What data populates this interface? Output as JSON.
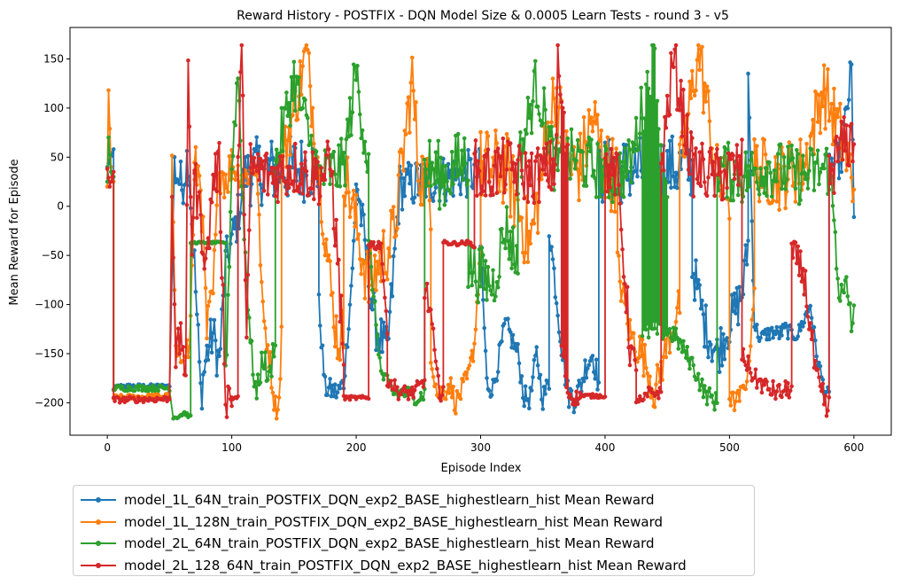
{
  "chart_data": {
    "type": "line",
    "title": "Reward History - POSTFIX - DQN Model Size & 0.0005 Learn Tests - round 3 - v5",
    "xlabel": "Episode Index",
    "ylabel": "Mean Reward for Episode",
    "xlim": [
      -30,
      630
    ],
    "ylim": [
      -233,
      182
    ],
    "xticks": [
      0,
      100,
      200,
      300,
      400,
      500,
      600
    ],
    "yticks": [
      -200,
      -150,
      -100,
      -50,
      0,
      50,
      100,
      150
    ],
    "xtick_labels": [
      "0",
      "100",
      "200",
      "300",
      "400",
      "500",
      "600"
    ],
    "ytick_labels": [
      "−200",
      "−150",
      "−100",
      "−50",
      "0",
      "50",
      "100",
      "150"
    ],
    "grid": false,
    "legend_position": "below",
    "markers": true,
    "series": [
      {
        "name": "model_1L_64N_train_POSTFIX_DQN_exp2_BASE_highestlearn_hist Mean Reward",
        "color": "#1f77b4",
        "segments": [
          {
            "x": [
              0,
              5
            ],
            "y": [
              40,
              58
            ]
          },
          {
            "x": [
              5,
              10,
              50
            ],
            "y": [
              -185,
              -183,
              -183
            ],
            "jitter": 2
          },
          {
            "x": [
              54,
              60,
              65,
              70,
              75,
              80,
              85,
              90,
              95,
              100,
              105,
              110,
              115
            ],
            "y": [
              40,
              20,
              55,
              -60,
              -190,
              -150,
              -130,
              -160,
              -60,
              -37,
              -10,
              30,
              40
            ],
            "jitter": 25
          },
          {
            "x": [
              115,
              170
            ],
            "y": [
              35,
              40
            ],
            "jitter": 35
          },
          {
            "x": [
              170,
              175,
              185,
              190,
              195,
              200
            ],
            "y": [
              -100,
              -185,
              -190,
              -180,
              -100,
              0
            ],
            "jitter": 12
          },
          {
            "x": [
              200,
              215,
              225,
              235,
              300
            ],
            "y": [
              30,
              -120,
              -150,
              20,
              35
            ],
            "jitter": 25
          },
          {
            "x": [
              300,
              305,
              310,
              320,
              330,
              335,
              340,
              345,
              350,
              355
            ],
            "y": [
              -40,
              -180,
              -185,
              -120,
              -150,
              -195,
              -195,
              -150,
              -195,
              -180
            ],
            "jitter": 12
          },
          {
            "x": [
              355,
              365,
              370,
              375,
              380,
              385,
              390,
              395
            ],
            "y": [
              -20,
              -140,
              -190,
              -195,
              -185,
              -160,
              -150,
              -180
            ],
            "jitter": 15
          },
          {
            "x": [
              395,
              470
            ],
            "y": [
              35,
              40
            ],
            "jitter": 35
          },
          {
            "x": [
              470,
              480,
              490,
              500,
              510,
              515
            ],
            "y": [
              -60,
              -120,
              -150,
              -120,
              -90,
              -40
            ],
            "jitter": 25
          },
          {
            "x": [
              515,
              520,
              525,
              530,
              535,
              540,
              545,
              550,
              555,
              565,
              570,
              575,
              580
            ],
            "y": [
              140,
              -120,
              -135,
              -130,
              -128,
              -130,
              -125,
              -130,
              -130,
              -100,
              -150,
              -180,
              -195
            ],
            "jitter": 8
          },
          {
            "x": [
              580,
              590,
              598,
              600
            ],
            "y": [
              40,
              50,
              139,
              -20
            ],
            "jitter": 20
          }
        ]
      },
      {
        "name": "model_1L_128N_train_POSTFIX_DQN_exp2_BASE_highestlearn_hist Mean Reward",
        "color": "#ff7f0e",
        "segments": [
          {
            "x": [
              0,
              1,
              3,
              5
            ],
            "y": [
              20,
              118,
              40,
              25
            ]
          },
          {
            "x": [
              5,
              50
            ],
            "y": [
              -195,
              -193
            ],
            "jitter": 3
          },
          {
            "x": [
              52,
              55,
              58,
              62,
              66,
              70
            ],
            "y": [
              40,
              -150,
              -160,
              -140,
              -150,
              20
            ],
            "jitter": 15
          },
          {
            "x": [
              70,
              75,
              80,
              85,
              90,
              95,
              100
            ],
            "y": [
              40,
              30,
              -130,
              -90,
              40,
              30,
              40
            ],
            "jitter": 25
          },
          {
            "x": [
              100,
              110,
              120,
              125,
              130,
              135,
              138,
              140
            ],
            "y": [
              40,
              30,
              40,
              -110,
              -150,
              -205,
              -200,
              -125
            ],
            "jitter": 15
          },
          {
            "x": [
              140,
              160,
              170,
              180,
              185,
              190
            ],
            "y": [
              40,
              156,
              40,
              -90,
              -135,
              -130
            ],
            "jitter": 30
          },
          {
            "x": [
              190,
              210,
              230,
              245,
              250,
              260
            ],
            "y": [
              40,
              -80,
              -30,
              130,
              40,
              10
            ],
            "jitter": 35
          },
          {
            "x": [
              260,
              265,
              270,
              275,
              280,
              290,
              295,
              300
            ],
            "y": [
              -150,
              -190,
              -190,
              -180,
              -200,
              -175,
              -140,
              -40
            ],
            "jitter": 12
          },
          {
            "x": [
              300,
              320,
              340,
              360,
              370,
              380,
              390,
              400,
              410
            ],
            "y": [
              40,
              40,
              -40,
              120,
              40,
              40,
              90,
              40,
              30
            ],
            "jitter": 40
          },
          {
            "x": [
              410,
              420,
              430,
              440,
              450,
              460
            ],
            "y": [
              -60,
              -130,
              -150,
              -190,
              -140,
              -100
            ],
            "jitter": 20
          },
          {
            "x": [
              460,
              475,
              490,
              500
            ],
            "y": [
              30,
              162,
              30,
              10
            ],
            "jitter": 35
          },
          {
            "x": [
              500,
              505,
              510,
              515,
              520
            ],
            "y": [
              -195,
              -200,
              -190,
              -170,
              -80
            ],
            "jitter": 10
          },
          {
            "x": [
              520,
              540,
              560,
              575,
              590,
              600
            ],
            "y": [
              40,
              30,
              40,
              120,
              70,
              20
            ],
            "jitter": 35
          }
        ]
      },
      {
        "name": "model_2L_64N_train_POSTFIX_DQN_exp2_BASE_highestlearn_hist Mean Reward",
        "color": "#2ca02c",
        "segments": [
          {
            "x": [
              0,
              1,
              3,
              5
            ],
            "y": [
              25,
              70,
              35,
              30
            ]
          },
          {
            "x": [
              5,
              50
            ],
            "y": [
              -185,
              -185
            ],
            "jitter": 3
          },
          {
            "x": [
              53,
              57,
              62,
              67
            ],
            "y": [
              -215,
              -214,
              -210,
              -215
            ],
            "jitter": 2
          },
          {
            "x": [
              67,
              69,
              95
            ],
            "y": [
              -37,
              -37,
              -37
            ],
            "jitter": 1
          },
          {
            "x": [
              95,
              100,
              105,
              110,
              115
            ],
            "y": [
              -180,
              40,
              137,
              -30,
              -130
            ],
            "jitter": 20
          },
          {
            "x": [
              115,
              120,
              125,
              130,
              135
            ],
            "y": [
              -140,
              -195,
              -150,
              -180,
              -130
            ],
            "jitter": 15
          },
          {
            "x": [
              135,
              150,
              170,
              190,
              200,
              210
            ],
            "y": [
              40,
              130,
              30,
              40,
              137,
              40
            ],
            "jitter": 30
          },
          {
            "x": [
              210,
              220,
              230,
              240,
              250,
              255
            ],
            "y": [
              -40,
              -170,
              -190,
              -190,
              -195,
              -190
            ],
            "jitter": 8
          },
          {
            "x": [
              255,
              270,
              290
            ],
            "y": [
              40,
              30,
              50
            ],
            "jitter": 35
          },
          {
            "x": [
              290,
              310,
              320,
              330
            ],
            "y": [
              -60,
              -80,
              -20,
              -60
            ],
            "jitter": 30
          },
          {
            "x": [
              330,
              345,
              360,
              375,
              390,
              405,
              420,
              440,
              445,
              450
            ],
            "y": [
              40,
              127,
              40,
              50,
              40,
              30,
              40,
              159,
              40,
              30
            ],
            "jitter": 30
          },
          {
            "x": [
              430,
              440,
              455,
              470,
              480,
              490
            ],
            "y": [
              -130,
              -125,
              -130,
              -160,
              -190,
              -200
            ],
            "jitter": 10
          },
          {
            "x": [
              490,
              510,
              530,
              560,
              580,
              590,
              595,
              600
            ],
            "y": [
              40,
              30,
              40,
              30,
              40,
              -100,
              -90,
              -125
            ],
            "jitter": 30
          }
        ]
      },
      {
        "name": "model_2L_128_64N_train_POSTFIX_DQN_exp2_BASE_highestlearn_hist Mean Reward",
        "color": "#d62728",
        "segments": [
          {
            "x": [
              0,
              2,
              5
            ],
            "y": [
              38,
              20,
              35
            ]
          },
          {
            "x": [
              5,
              50
            ],
            "y": [
              -197,
              -196
            ],
            "jitter": 3
          },
          {
            "x": [
              52,
              55,
              60,
              63,
              65,
              68,
              70
            ],
            "y": [
              20,
              -150,
              -135,
              -170,
              133,
              -40,
              40
            ],
            "jitter": 20
          },
          {
            "x": [
              70,
              80,
              85,
              90,
              95,
              100
            ],
            "y": [
              30,
              -60,
              30,
              40,
              -190,
              -195
            ],
            "jitter": 25
          },
          {
            "x": [
              100,
              105
            ],
            "y": [
              -195,
              -195
            ],
            "jitter": 2
          },
          {
            "x": [
              105,
              108,
              112,
              115
            ],
            "y": [
              40,
              163,
              -130,
              20
            ],
            "jitter": 25
          },
          {
            "x": [
              115,
              130,
              150,
              170,
              180,
              190
            ],
            "y": [
              40,
              30,
              40,
              30,
              40,
              -150
            ],
            "jitter": 30
          },
          {
            "x": [
              190,
              195,
              210
            ],
            "y": [
              -195,
              -195,
              -195
            ],
            "jitter": 2
          },
          {
            "x": [
              210,
              215,
              220,
              225
            ],
            "y": [
              -37,
              -40,
              -38,
              -130
            ],
            "jitter": 5
          },
          {
            "x": [
              225,
              235,
              245,
              255
            ],
            "y": [
              -175,
              -190,
              -190,
              -180
            ],
            "jitter": 8
          },
          {
            "x": [
              255,
              260,
              265,
              270
            ],
            "y": [
              -80,
              -110,
              -180,
              -185
            ],
            "jitter": 15
          },
          {
            "x": [
              270,
              280,
              290,
              295
            ],
            "y": [
              -37,
              -38,
              -37,
              -40
            ],
            "jitter": 2
          },
          {
            "x": [
              295,
              300,
              320,
              340,
              360,
              362,
              370
            ],
            "y": [
              40,
              30,
              40,
              30,
              40,
              143,
              40
            ],
            "jitter": 30
          },
          {
            "x": [
              365,
              370,
              375,
              380
            ],
            "y": [
              -140,
              -190,
              -195,
              -195
            ],
            "jitter": 8
          },
          {
            "x": [
              380,
              400
            ],
            "y": [
              -193,
              -193
            ],
            "jitter": 2
          },
          {
            "x": [
              400,
              410,
              420,
              425
            ],
            "y": [
              40,
              30,
              -140,
              -180
            ],
            "jitter": 25
          },
          {
            "x": [
              425,
              430,
              435,
              445
            ],
            "y": [
              -195,
              -200,
              -190,
              -190
            ],
            "jitter": 6
          },
          {
            "x": [
              445,
              455,
              470,
              490,
              510
            ],
            "y": [
              40,
              150,
              40,
              30,
              40
            ],
            "jitter": 30
          },
          {
            "x": [
              510,
              520,
              530,
              540,
              550
            ],
            "y": [
              -150,
              -175,
              -185,
              -190,
              -185
            ],
            "jitter": 10
          },
          {
            "x": [
              550,
              560,
              570,
              575,
              580
            ],
            "y": [
              -50,
              -70,
              -180,
              -200,
              -210
            ],
            "jitter": 20
          },
          {
            "x": [
              580,
              590,
              600
            ],
            "y": [
              30,
              60,
              70
            ],
            "jitter": 30
          }
        ]
      }
    ]
  }
}
